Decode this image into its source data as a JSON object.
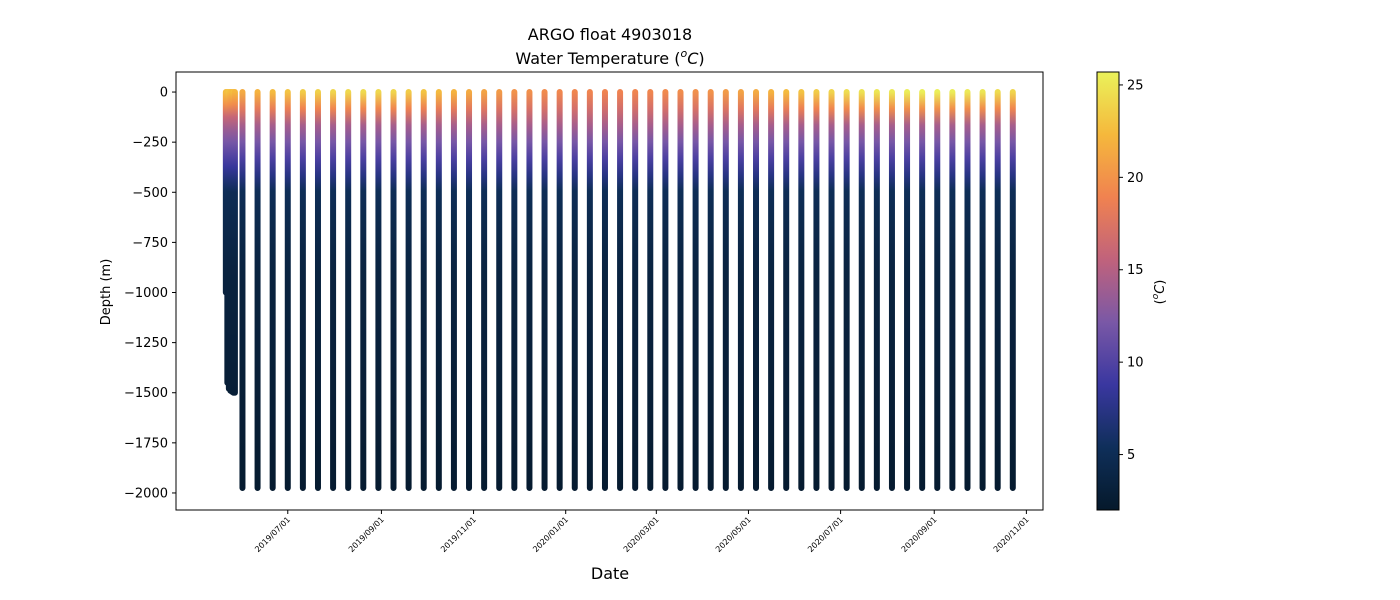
{
  "chart_data": {
    "type": "scatter",
    "title": "ARGO float 4903018",
    "subtitle_prefix": "Water Temperature (",
    "subtitle_unit_sup": "o",
    "subtitle_unit_base": "C",
    "subtitle_suffix": ")",
    "xlabel": "Date",
    "ylabel": "Depth (m)",
    "colorbar_label_prefix": "(",
    "colorbar_label_sup": "o",
    "colorbar_label_base": "C",
    "colorbar_label_suffix": ")",
    "xlim": [
      "2019-04-18",
      "2020-11-12"
    ],
    "ylim": [
      -2085,
      100
    ],
    "yticks": [
      0,
      -250,
      -500,
      -750,
      -1000,
      -1250,
      -1500,
      -1750,
      -2000
    ],
    "ytick_labels": [
      "0",
      "−250",
      "−500",
      "−750",
      "−1000",
      "−1250",
      "−1500",
      "−1750",
      "−2000"
    ],
    "xticks": [
      "2019-07-01",
      "2019-09-01",
      "2019-11-01",
      "2020-01-01",
      "2020-03-01",
      "2020-05-01",
      "2020-07-01",
      "2020-09-01",
      "2020-11-01"
    ],
    "xtick_labels": [
      "2019/07/01",
      "2019/09/01",
      "2019/11/01",
      "2020/01/01",
      "2020/03/01",
      "2020/05/01",
      "2020/07/01",
      "2020/09/01",
      "2020/11/01"
    ],
    "colorbar": {
      "range": [
        2,
        25.7
      ],
      "ticks": [
        5,
        10,
        15,
        20,
        25
      ],
      "colors": [
        "#05192b",
        "#0f2f5a",
        "#3a37a0",
        "#7a58a6",
        "#c0627c",
        "#f08250",
        "#f5b83c",
        "#eaf25a"
      ]
    },
    "profiles_early": {
      "dates": [
        "2019-05-21",
        "2019-05-22",
        "2019-05-23",
        "2019-05-24",
        "2019-05-25",
        "2019-05-26",
        "2019-05-27"
      ],
      "max_depth": [
        -1000,
        -1450,
        -1480,
        -1490,
        -1495,
        -1500,
        -1500
      ],
      "surface_temp": [
        22.5,
        22.8,
        23.0,
        22.6,
        22.4,
        22.7,
        22.2
      ]
    },
    "profiles": {
      "dates": [
        "2019-06-01",
        "2019-06-11",
        "2019-06-21",
        "2019-07-01",
        "2019-07-11",
        "2019-07-21",
        "2019-07-31",
        "2019-08-10",
        "2019-08-20",
        "2019-08-30",
        "2019-09-09",
        "2019-09-19",
        "2019-09-29",
        "2019-10-09",
        "2019-10-19",
        "2019-10-29",
        "2019-11-08",
        "2019-11-18",
        "2019-11-28",
        "2019-12-08",
        "2019-12-18",
        "2019-12-28",
        "2020-01-07",
        "2020-01-17",
        "2020-01-27",
        "2020-02-06",
        "2020-02-16",
        "2020-02-26",
        "2020-03-07",
        "2020-03-17",
        "2020-03-27",
        "2020-04-06",
        "2020-04-16",
        "2020-04-26",
        "2020-05-06",
        "2020-05-16",
        "2020-05-26",
        "2020-06-05",
        "2020-06-15",
        "2020-06-25",
        "2020-07-05",
        "2020-07-15",
        "2020-07-25",
        "2020-08-04",
        "2020-08-14",
        "2020-08-24",
        "2020-09-03",
        "2020-09-13",
        "2020-09-23",
        "2020-10-03",
        "2020-10-13",
        "2020-10-23"
      ],
      "max_depth": -1975,
      "surface_temp": [
        21.5,
        22,
        22.5,
        23,
        23.5,
        23.8,
        24,
        24.2,
        24.3,
        24.2,
        24,
        23.5,
        23,
        22.5,
        22,
        21.5,
        21,
        20.5,
        20,
        19.8,
        19.5,
        19.3,
        19.2,
        19.1,
        19,
        19,
        19.1,
        19.2,
        19.4,
        19.6,
        19.8,
        20,
        20.5,
        21,
        21.5,
        22,
        22.5,
        23,
        23.5,
        24,
        24.5,
        24.8,
        25,
        25.2,
        25.4,
        25.5,
        25.5,
        25.4,
        25.2,
        25,
        24.5,
        24
      ]
    }
  }
}
